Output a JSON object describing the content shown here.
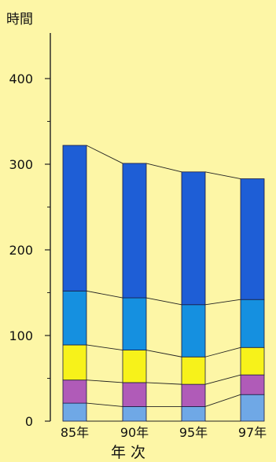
{
  "chart_data": {
    "type": "bar",
    "stacked": true,
    "ylabel": "時間",
    "xlabel": "年 次",
    "categories": [
      "85年",
      "90年",
      "95年",
      "97年"
    ],
    "yticks": [
      0,
      100,
      200,
      300,
      400
    ],
    "ylim": [
      0,
      440
    ],
    "grid": false,
    "connector_lines": true,
    "series": [
      {
        "color": "#6fa8e6",
        "values": [
          21,
          17,
          17,
          31
        ]
      },
      {
        "color": "#b05bb8",
        "values": [
          27,
          28,
          26,
          23
        ]
      },
      {
        "color": "#f7f21a",
        "values": [
          41,
          38,
          32,
          32
        ]
      },
      {
        "color": "#1590e0",
        "values": [
          63,
          61,
          61,
          56
        ]
      },
      {
        "color": "#1e5ed6",
        "values": [
          170,
          157,
          155,
          141
        ]
      }
    ]
  }
}
